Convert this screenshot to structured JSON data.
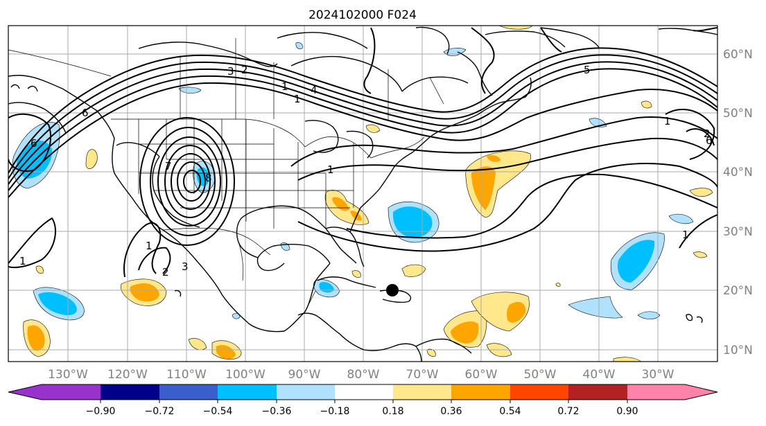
{
  "title": "2024102000 F024",
  "map": {
    "lon_labels": [
      "130°W",
      "120°W",
      "110°W",
      "100°W",
      "90°W",
      "80°W",
      "70°W",
      "60°W",
      "50°W",
      "40°W",
      "30°W"
    ],
    "lat_labels": [
      "60°N",
      "50°N",
      "40°N",
      "30°N",
      "20°N",
      "10°N"
    ],
    "contour_labels": [
      "3",
      "2",
      "1",
      "4",
      "5",
      "6",
      "1",
      "1",
      "2",
      "6",
      "7",
      "8",
      "1",
      "1",
      "2",
      "6",
      "1",
      "3",
      "1"
    ]
  },
  "colorbar": {
    "colors": [
      "#9932cc",
      "#00008b",
      "#3a5fcd",
      "#00bfff",
      "#b0e2ff",
      "#ffffff",
      "#ffe78c",
      "#ffa500",
      "#ff4500",
      "#b22222",
      "#ff82ab"
    ],
    "ticks": [
      "−0.90",
      "−0.72",
      "−0.54",
      "−0.36",
      "−0.18",
      "0.18",
      "0.36",
      "0.54",
      "0.72",
      "0.90"
    ]
  }
}
